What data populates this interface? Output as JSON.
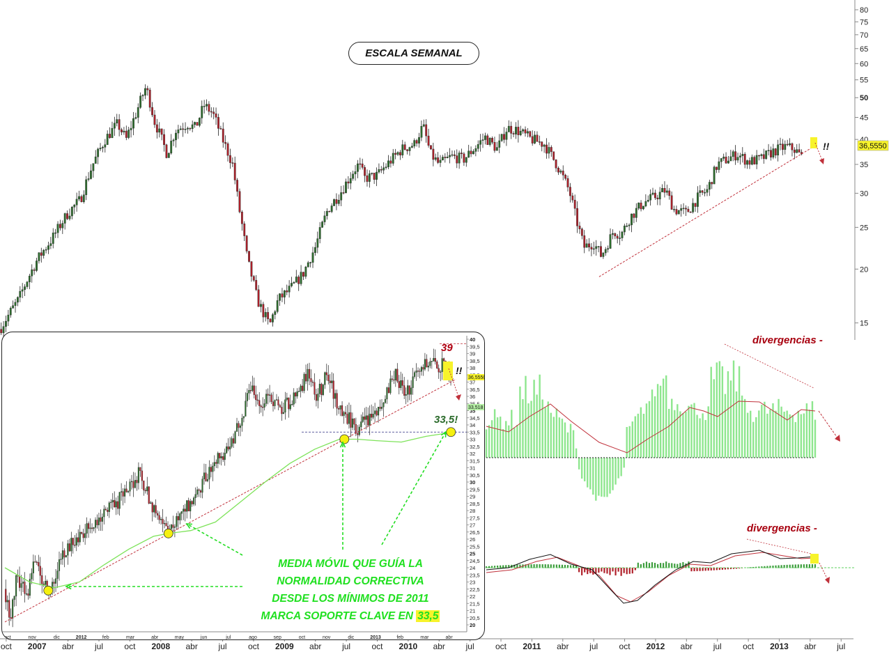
{
  "title": "ESCALA SEMANAL",
  "current_price_label": "36,5550",
  "inset_current_price_label": "36,5550",
  "inset_ma_label": "33,518",
  "inset_resistance_label": "39",
  "inset_support_label": "33,5!",
  "exclamation": "!!",
  "divergence_label_1": "divergencias -",
  "divergence_label_2": "divergencias -",
  "annotation_lines": [
    "MEDIA MÓVIL QUE GUÍA LA",
    "NORMALIDAD CORRECTIVA",
    "DESDE LOS MÍNIMOS DE 2011",
    "MARCA SOPORTE CLAVE EN "
  ],
  "annotation_highlight": "33,5",
  "colors": {
    "candle_up": "#2d6e2d",
    "candle_down": "#b0202a",
    "trendline": "#c0303a",
    "moving_average": "#7ee35a",
    "annotation_green": "#20e020",
    "histogram_green": "#8ee68e",
    "signal_red": "#c0303a",
    "highlight_yellow": "#f7f32b"
  },
  "chart_data": [
    {
      "type": "candlestick",
      "name": "main-weekly",
      "ylim": [
        13,
        80
      ],
      "yscale": "log",
      "y_ticks": [
        15,
        20,
        25,
        30,
        35,
        40,
        45,
        50,
        55,
        60,
        65,
        70,
        75,
        80
      ],
      "y_tick_labels": [
        "15",
        "20",
        "25",
        "30",
        "35",
        "40",
        "45",
        "50",
        "55",
        "60",
        "65",
        "70",
        "75",
        "80"
      ],
      "x_labels": [
        "oct",
        "2007",
        "abr",
        "jul",
        "oct",
        "2008",
        "abr",
        "jul",
        "oct",
        "2009",
        "abr",
        "jul",
        "oct",
        "2010",
        "abr",
        "jul",
        "oct",
        "2011",
        "abr",
        "jul",
        "oct",
        "2012",
        "abr",
        "jul",
        "oct",
        "2013",
        "abr",
        "jul"
      ],
      "x_label_bold": [
        false,
        true,
        false,
        false,
        false,
        true,
        false,
        false,
        false,
        true,
        false,
        false,
        false,
        true,
        false,
        false,
        false,
        true,
        false,
        false,
        false,
        true,
        false,
        false,
        false,
        true,
        false,
        false
      ],
      "x_range": [
        2006.7,
        2013.6
      ],
      "x_label_t": [
        2006.75,
        2007.0,
        2007.25,
        2007.5,
        2007.75,
        2008.0,
        2008.25,
        2008.5,
        2008.75,
        2009.0,
        2009.25,
        2009.5,
        2009.75,
        2010.0,
        2010.25,
        2010.5,
        2010.75,
        2011.0,
        2011.25,
        2011.5,
        2011.75,
        2012.0,
        2012.25,
        2012.5,
        2012.75,
        2013.0,
        2013.25,
        2013.5
      ],
      "path_points": [
        [
          2006.7,
          14.5
        ],
        [
          2006.85,
          17.0
        ],
        [
          2007.0,
          21.0
        ],
        [
          2007.12,
          23.5
        ],
        [
          2007.25,
          27.0
        ],
        [
          2007.35,
          29.0
        ],
        [
          2007.45,
          35.0
        ],
        [
          2007.55,
          40.0
        ],
        [
          2007.65,
          43.5
        ],
        [
          2007.72,
          40.0
        ],
        [
          2007.8,
          46.0
        ],
        [
          2007.88,
          53.0
        ],
        [
          2007.95,
          44.0
        ],
        [
          2008.05,
          37.0
        ],
        [
          2008.12,
          42.0
        ],
        [
          2008.22,
          43.5
        ],
        [
          2008.28,
          42.5
        ],
        [
          2008.35,
          48.0
        ],
        [
          2008.42,
          46.0
        ],
        [
          2008.5,
          40.0
        ],
        [
          2008.58,
          35.0
        ],
        [
          2008.63,
          28.0
        ],
        [
          2008.7,
          21.0
        ],
        [
          2008.78,
          17.0
        ],
        [
          2008.82,
          16.0
        ],
        [
          2008.88,
          14.8
        ],
        [
          2008.95,
          17.0
        ],
        [
          2009.05,
          18.0
        ],
        [
          2009.15,
          19.5
        ],
        [
          2009.25,
          22.5
        ],
        [
          2009.35,
          27.5
        ],
        [
          2009.45,
          30.0
        ],
        [
          2009.55,
          33.5
        ],
        [
          2009.6,
          35.0
        ],
        [
          2009.65,
          32.5
        ],
        [
          2009.75,
          33.0
        ],
        [
          2009.85,
          35.5
        ],
        [
          2009.95,
          38.0
        ],
        [
          2010.05,
          39.0
        ],
        [
          2010.12,
          43.0
        ],
        [
          2010.18,
          37.0
        ],
        [
          2010.25,
          35.0
        ],
        [
          2010.35,
          36.5
        ],
        [
          2010.45,
          36.0
        ],
        [
          2010.55,
          38.5
        ],
        [
          2010.62,
          40.5
        ],
        [
          2010.72,
          38.0
        ],
        [
          2010.8,
          42.5
        ],
        [
          2010.88,
          42.0
        ],
        [
          2011.0,
          40.0
        ],
        [
          2011.1,
          39.0
        ],
        [
          2011.2,
          35.0
        ],
        [
          2011.3,
          30.5
        ],
        [
          2011.36,
          26.0
        ],
        [
          2011.42,
          22.5
        ],
        [
          2011.5,
          23.0
        ],
        [
          2011.56,
          21.5
        ],
        [
          2011.6,
          22.5
        ],
        [
          2011.66,
          24.5
        ],
        [
          2011.72,
          24.0
        ],
        [
          2011.8,
          26.5
        ],
        [
          2011.9,
          28.5
        ],
        [
          2012.0,
          29.5
        ],
        [
          2012.08,
          30.5
        ],
        [
          2012.15,
          27.5
        ],
        [
          2012.25,
          27.0
        ],
        [
          2012.35,
          29.5
        ],
        [
          2012.42,
          30.5
        ],
        [
          2012.5,
          35.0
        ],
        [
          2012.58,
          36.0
        ],
        [
          2012.66,
          37.0
        ],
        [
          2012.75,
          35.5
        ],
        [
          2012.85,
          36.0
        ],
        [
          2012.95,
          37.5
        ],
        [
          2013.05,
          38.5
        ],
        [
          2013.12,
          38.0
        ],
        [
          2013.18,
          36.5
        ]
      ],
      "trendline": [
        [
          2011.6,
          19.2
        ],
        [
          2013.25,
          38.5
        ]
      ]
    },
    {
      "type": "candlestick",
      "name": "inset-zoom",
      "ylim": [
        20,
        40
      ],
      "y_ticks": [
        20,
        20.5,
        21,
        21.5,
        22,
        22.5,
        23,
        23.5,
        24,
        24.5,
        25,
        25.5,
        26,
        26.5,
        27,
        27.5,
        28,
        28.5,
        29,
        29.5,
        30,
        30.5,
        31,
        31.5,
        32,
        32.5,
        33,
        33.5,
        34,
        34.5,
        35,
        35.5,
        36,
        36.5,
        37,
        37.5,
        38,
        38.5,
        39,
        39.5,
        40
      ],
      "y_tick_labels": [
        "20",
        "20,5",
        "21",
        "21,5",
        "22",
        "22,5",
        "23",
        "23,5",
        "24",
        "24,5",
        "25",
        "25,5",
        "26",
        "26,5",
        "27",
        "27,5",
        "28",
        "28,5",
        "29",
        "29,5",
        "30",
        "30,5",
        "31",
        "31,5",
        "32",
        "32,5",
        "33",
        "33,5",
        "34",
        "34,5",
        "35",
        "35,5",
        "36",
        "36,5",
        "37",
        "37,5",
        "38",
        "38,5",
        "39",
        "39,5",
        "40"
      ],
      "bold_ticks": [
        20,
        25,
        30,
        35,
        40
      ],
      "x_labels": [
        "oct",
        "nov",
        "dic",
        "2012",
        "feb",
        "mar",
        "abr",
        "may",
        "jun",
        "jul",
        "ago",
        "sep",
        "oct",
        "nov",
        "dic",
        "2013",
        "feb",
        "mar",
        "abr"
      ],
      "x_label_bold": [
        false,
        false,
        false,
        true,
        false,
        false,
        false,
        false,
        false,
        false,
        false,
        false,
        false,
        false,
        false,
        true,
        false,
        false,
        false
      ],
      "x_range": [
        0,
        18.5
      ],
      "path_points": [
        [
          0.0,
          22.5
        ],
        [
          0.2,
          20.5
        ],
        [
          0.5,
          23.5
        ],
        [
          0.9,
          22.0
        ],
        [
          1.2,
          24.5
        ],
        [
          1.6,
          23.0
        ],
        [
          1.75,
          22.3
        ],
        [
          2.1,
          24.0
        ],
        [
          2.5,
          25.5
        ],
        [
          3.0,
          26.0
        ],
        [
          3.5,
          27.0
        ],
        [
          4.0,
          28.0
        ],
        [
          4.5,
          28.5
        ],
        [
          5.0,
          29.5
        ],
        [
          5.4,
          30.5
        ],
        [
          5.8,
          29.0
        ],
        [
          6.2,
          27.5
        ],
        [
          6.6,
          26.5
        ],
        [
          7.0,
          27.5
        ],
        [
          7.5,
          28.5
        ],
        [
          8.0,
          30.0
        ],
        [
          8.5,
          31.5
        ],
        [
          9.0,
          32.5
        ],
        [
          9.5,
          34.0
        ],
        [
          9.9,
          37.0
        ],
        [
          10.3,
          35.5
        ],
        [
          10.7,
          36.0
        ],
        [
          11.2,
          35.0
        ],
        [
          11.7,
          36.0
        ],
        [
          12.2,
          37.5
        ],
        [
          12.6,
          36.0
        ],
        [
          13.0,
          37.5
        ],
        [
          13.4,
          35.5
        ],
        [
          13.8,
          34.5
        ],
        [
          14.2,
          33.8
        ],
        [
          14.6,
          34.3
        ],
        [
          15.0,
          35.0
        ],
        [
          15.4,
          36.5
        ],
        [
          15.8,
          37.5
        ],
        [
          16.2,
          36.0
        ],
        [
          16.6,
          38.0
        ],
        [
          17.0,
          38.5
        ],
        [
          17.4,
          38.0
        ],
        [
          17.8,
          38.3
        ],
        [
          18.1,
          36.8
        ]
      ],
      "moving_average": [
        [
          0.0,
          24.0
        ],
        [
          1.0,
          23.0
        ],
        [
          2.0,
          22.6
        ],
        [
          3.0,
          23.0
        ],
        [
          4.0,
          24.2
        ],
        [
          5.0,
          25.3
        ],
        [
          6.0,
          26.2
        ],
        [
          6.6,
          26.4
        ],
        [
          7.5,
          26.6
        ],
        [
          8.5,
          27.2
        ],
        [
          9.5,
          28.6
        ],
        [
          10.5,
          30.0
        ],
        [
          11.5,
          31.3
        ],
        [
          12.5,
          32.3
        ],
        [
          13.5,
          33.0
        ],
        [
          14.2,
          33.0
        ],
        [
          15.0,
          32.9
        ],
        [
          16.0,
          32.8
        ],
        [
          17.0,
          33.2
        ],
        [
          18.1,
          33.5
        ]
      ],
      "trendline": [
        [
          0.0,
          20.2
        ],
        [
          18.2,
          37.2
        ]
      ],
      "support_level": 33.5,
      "resistance_level": 39
    },
    {
      "type": "bar",
      "name": "momentum-histogram",
      "note": "green histogram with red signal line, showing negative divergence",
      "baseline": 0
    },
    {
      "type": "line",
      "name": "oscillator",
      "note": "black and red oscillator lines with green/red histogram, showing negative divergence"
    }
  ]
}
